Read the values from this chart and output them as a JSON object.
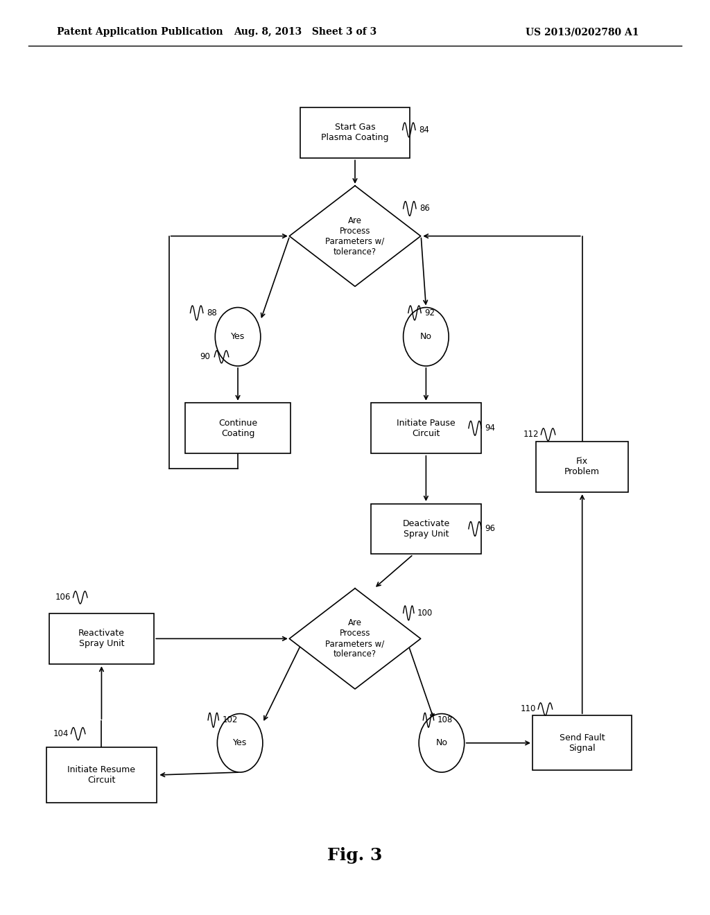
{
  "header_left": "Patent Application Publication",
  "header_mid": "Aug. 8, 2013   Sheet 3 of 3",
  "header_right": "US 2013/0202780 A1",
  "fig_label": "Fig. 3",
  "bg_color": "#ffffff",
  "text_color": "#000000"
}
